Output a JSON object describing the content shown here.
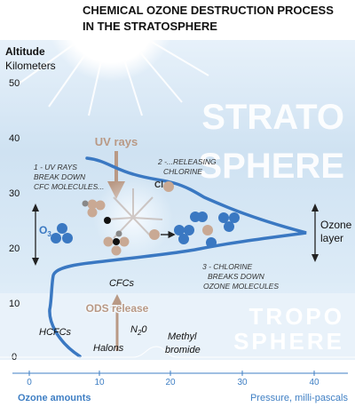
{
  "title_line1": "CHEMICAL OZONE DESTRUCTION PROCESS",
  "title_line2": "IN THE STRATOSPHERE",
  "y_axis": {
    "title": "Altitude",
    "unit": "Kilometers",
    "ticks": [
      "50",
      "40",
      "30",
      "20",
      "10",
      "0"
    ]
  },
  "x_axis": {
    "left_label": "Ozone amounts",
    "right_label": "Pressure, milli-pascals",
    "ticks": [
      "0",
      "10",
      "20",
      "30",
      "40"
    ]
  },
  "layers": {
    "strato_line1": "STRATO",
    "strato_line2": "SPHERE",
    "tropo_line1": "TROPO",
    "tropo_line2": "SPHERE"
  },
  "labels": {
    "uv_rays": "UV rays",
    "step1_line1": "1 - UV RAYS",
    "step1_line2": "BREAK DOWN",
    "step1_line3": "CFC MOLECULES...",
    "step2_line1": "2 -...RELEASING",
    "step2_line2": "CHLORINE",
    "cl": "Cl",
    "o3_main": "O",
    "o3_sub": "3",
    "ozone_layer_line1": "Ozone",
    "ozone_layer_line2": "layer",
    "step3_line1": "3 - CHLORINE",
    "step3_line2": "BREAKS DOWN",
    "step3_line3": "OZONE MOLECULES",
    "cfcs": "CFCs",
    "ods_release": "ODS release",
    "hcfcs": "HCFCs",
    "halons": "Halons",
    "n2o": "N",
    "n2o_sub": "2",
    "n2o_tail": "0",
    "methyl_line1": "Methyl",
    "methyl_line2": "bromide"
  },
  "colors": {
    "ozone_blue": "#3a78c2",
    "tan": "#c9a994",
    "arrow_tan": "#b99985",
    "strato_text": "#ffffff",
    "axis_blue": "#3f7fc4",
    "sky_blue": "#d5e6f4"
  }
}
